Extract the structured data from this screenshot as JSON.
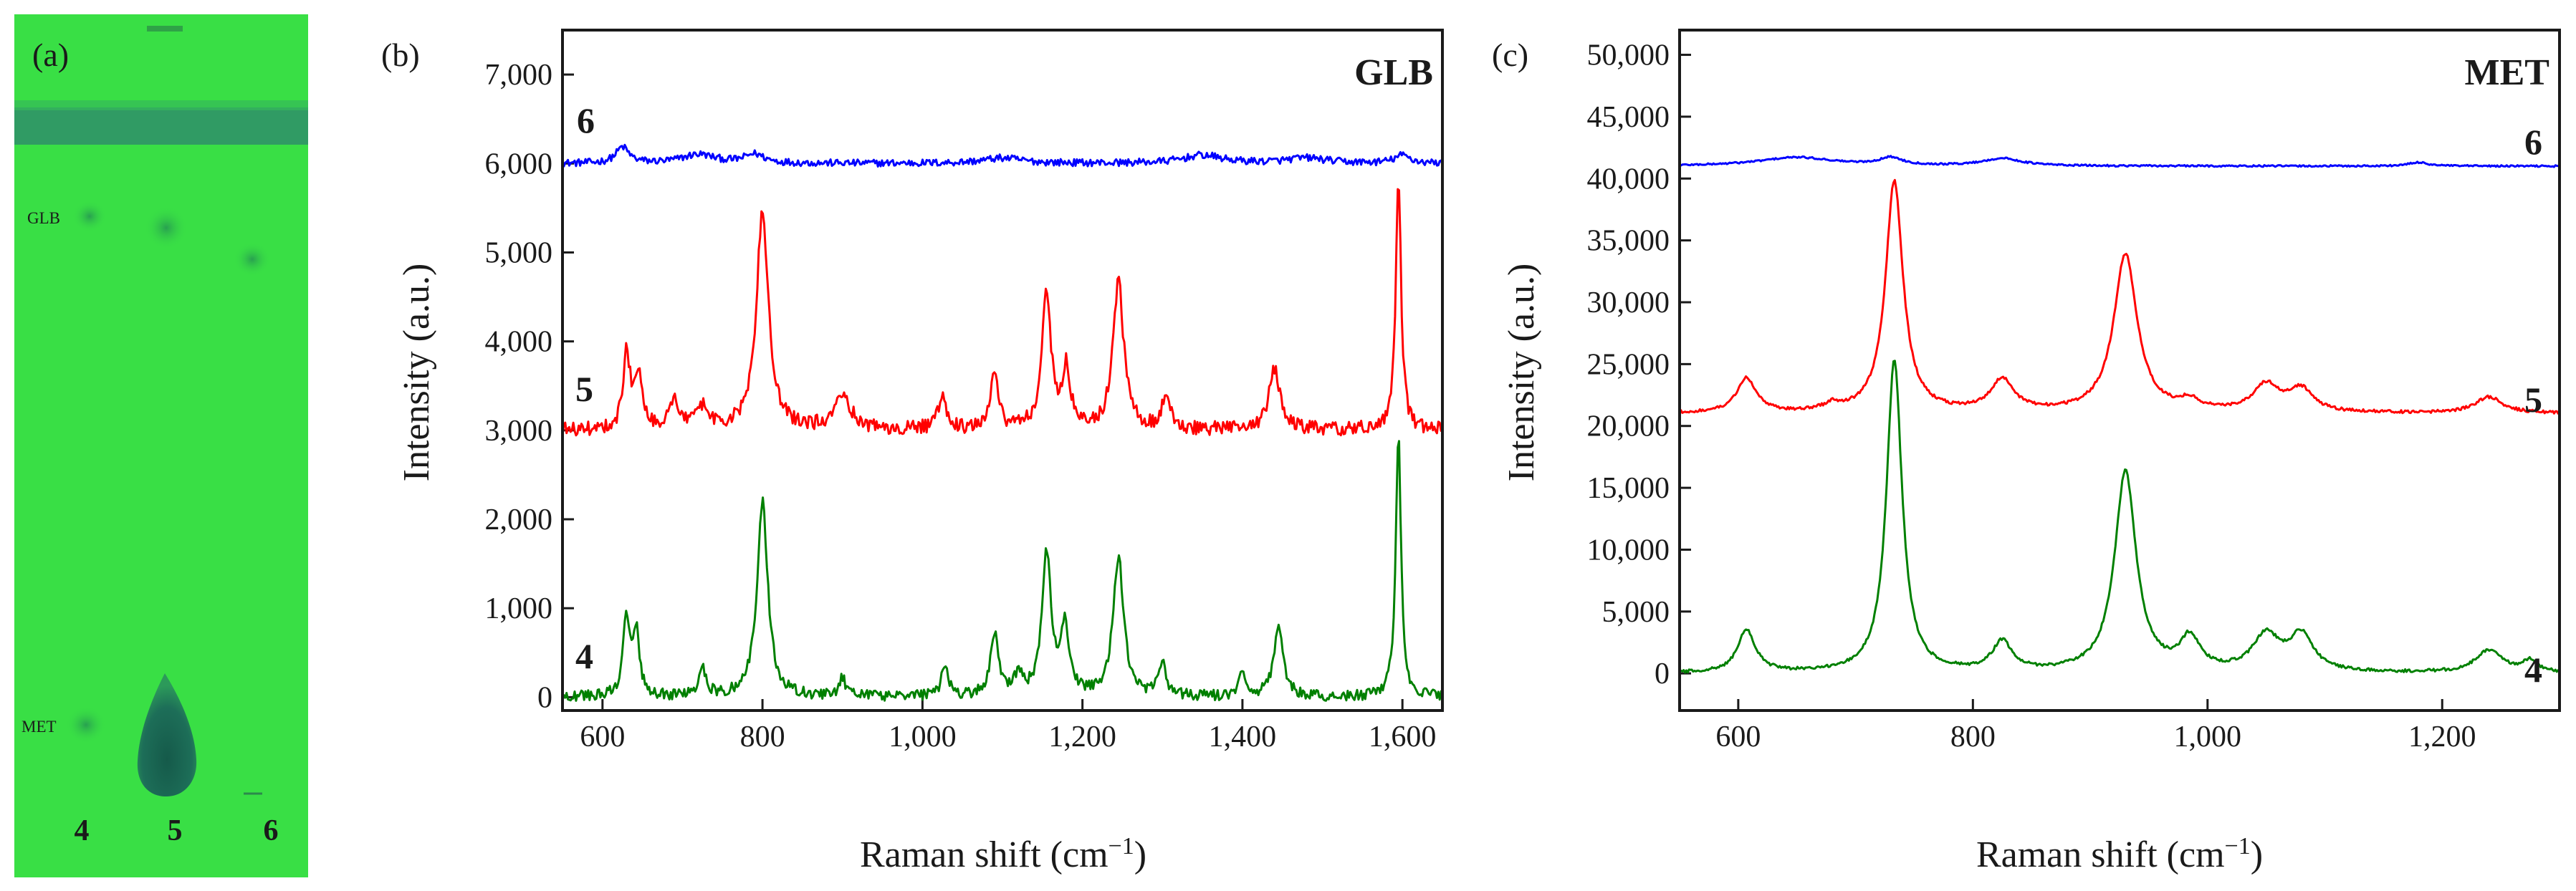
{
  "chart_data": [
    {
      "panel": "a",
      "type": "tlc-plate",
      "panel_label": "(a)",
      "spot_labels": [
        "GLB",
        "MET"
      ],
      "lane_labels": [
        "4",
        "5",
        "6"
      ],
      "colors": {
        "plate": "#39df45",
        "band": "#1f7a5c",
        "spot": "#2a9a4e",
        "met_blob": "#1d6a55"
      }
    },
    {
      "panel": "b",
      "type": "line",
      "panel_label": "(b)",
      "title": "GLB",
      "xlabel": "Raman shift (cm",
      "xlabel_sup": "−1",
      "xlabel_end": ")",
      "ylabel": "Intensity (a.u.)",
      "xlim": [
        550,
        1650
      ],
      "ylim": [
        -150,
        7500
      ],
      "xticks": [
        600,
        800,
        1000,
        1200,
        1400,
        1600
      ],
      "xtick_labels": [
        "600",
        "800",
        "1,000",
        "1,200",
        "1,400",
        "1,600"
      ],
      "yticks": [
        0,
        1000,
        2000,
        3000,
        4000,
        5000,
        6000,
        7000
      ],
      "ytick_labels": [
        "0",
        "1,000",
        "2,000",
        "3,000",
        "4,000",
        "5,000",
        "6,000",
        "7,000"
      ],
      "series": [
        {
          "name": "6",
          "color": "#0000ff",
          "baseline": 6000,
          "noise": 40,
          "peaks": [
            [
              625,
              180,
              10
            ],
            [
              720,
              100,
              25
            ],
            [
              790,
              100,
              15
            ],
            [
              1100,
              60,
              30
            ],
            [
              1350,
              90,
              30
            ],
            [
              1480,
              60,
              30
            ],
            [
              1600,
              90,
              12
            ]
          ]
        },
        {
          "name": "5",
          "color": "#ff0000",
          "baseline": 3000,
          "noise": 80,
          "peaks": [
            [
              630,
              850,
              5
            ],
            [
              645,
              650,
              6
            ],
            [
              690,
              300,
              8
            ],
            [
              725,
              250,
              8
            ],
            [
              800,
              2450,
              9
            ],
            [
              900,
              400,
              12
            ],
            [
              1025,
              400,
              6
            ],
            [
              1090,
              600,
              6
            ],
            [
              1155,
              1500,
              7
            ],
            [
              1180,
              650,
              6
            ],
            [
              1245,
              1650,
              8
            ],
            [
              1305,
              400,
              6
            ],
            [
              1440,
              700,
              8
            ],
            [
              1595,
              2850,
              4
            ]
          ]
        },
        {
          "name": "4",
          "color": "#008000",
          "baseline": 0,
          "noise": 60,
          "peaks": [
            [
              630,
              850,
              5
            ],
            [
              642,
              700,
              5
            ],
            [
              725,
              300,
              6
            ],
            [
              800,
              2200,
              8
            ],
            [
              900,
              200,
              5
            ],
            [
              1028,
              350,
              5
            ],
            [
              1090,
              700,
              6
            ],
            [
              1120,
              250,
              5
            ],
            [
              1155,
              1600,
              7
            ],
            [
              1178,
              750,
              6
            ],
            [
              1245,
              1550,
              8
            ],
            [
              1300,
              400,
              5
            ],
            [
              1400,
              250,
              5
            ],
            [
              1445,
              750,
              7
            ],
            [
              1595,
              2950,
              4
            ]
          ]
        }
      ]
    },
    {
      "panel": "c",
      "type": "line",
      "panel_label": "(c)",
      "title": "MET",
      "xlabel": "Raman shift (cm",
      "xlabel_sup": "−1",
      "xlabel_end": ")",
      "ylabel": "Intensity (a.u.)",
      "xlim": [
        550,
        1300
      ],
      "ylim": [
        -3000,
        52000
      ],
      "xticks": [
        600,
        800,
        1000,
        1200
      ],
      "xtick_labels": [
        "600",
        "800",
        "1,000",
        "1,200"
      ],
      "yticks": [
        0,
        5000,
        10000,
        15000,
        20000,
        25000,
        30000,
        35000,
        40000,
        45000,
        50000
      ],
      "ytick_labels": [
        "0",
        "5,000",
        "10,000",
        "15,000",
        "20,000",
        "25,000",
        "30,000",
        "35,000",
        "40,000",
        "45,000",
        "50,000"
      ],
      "series": [
        {
          "name": "6",
          "color": "#0000ff",
          "baseline": 41000,
          "noise": 70,
          "peaks": [
            [
              650,
              700,
              40
            ],
            [
              730,
              600,
              12
            ],
            [
              825,
              600,
              20
            ],
            [
              1180,
              300,
              10
            ]
          ]
        },
        {
          "name": "5",
          "color": "#ff0000",
          "baseline": 21000,
          "noise": 120,
          "peaks": [
            [
              607,
              2800,
              10
            ],
            [
              680,
              500,
              8
            ],
            [
              733,
              18700,
              9
            ],
            [
              825,
              2600,
              12
            ],
            [
              930,
              12800,
              12
            ],
            [
              985,
              800,
              10
            ],
            [
              1050,
              2200,
              14
            ],
            [
              1080,
              1800,
              12
            ],
            [
              1240,
              1300,
              14
            ]
          ]
        },
        {
          "name": "4",
          "color": "#008000",
          "baseline": 0,
          "noise": 120,
          "peaks": [
            [
              607,
              3500,
              9
            ],
            [
              733,
              25200,
              8
            ],
            [
              825,
              2400,
              10
            ],
            [
              930,
              16200,
              11
            ],
            [
              985,
              2600,
              10
            ],
            [
              1050,
              2900,
              14
            ],
            [
              1080,
              2900,
              12
            ],
            [
              1240,
              1800,
              14
            ],
            [
              1275,
              900,
              8
            ]
          ]
        }
      ]
    }
  ]
}
